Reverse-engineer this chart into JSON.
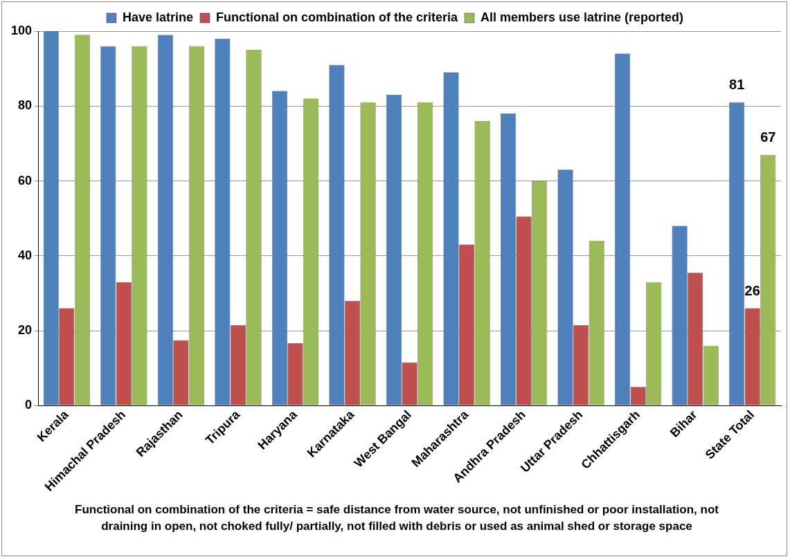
{
  "chart_data": {
    "type": "bar",
    "categories": [
      "Kerala",
      "Himachal Pradesh",
      "Rajasthan",
      "Tripura",
      "Haryana",
      "Karnataka",
      "West Bangal",
      "Maharashtra",
      "Andhra Pradesh",
      "Uttar Pradesh",
      "Chhattisgarh",
      "Bihar",
      "State Total"
    ],
    "series": [
      {
        "name": "Have latrine",
        "color": "#4f81bd",
        "values": [
          100,
          96,
          99,
          98,
          84,
          91,
          83,
          89,
          78,
          63,
          94,
          48,
          81
        ],
        "value_labels": [
          null,
          null,
          null,
          null,
          null,
          null,
          null,
          null,
          null,
          null,
          null,
          null,
          "81"
        ]
      },
      {
        "name": "Functional on combination of the criteria",
        "color": "#c0504d",
        "values": [
          26,
          33,
          17.5,
          21.5,
          16.7,
          28,
          11.5,
          43,
          50.5,
          21.5,
          5,
          35.5,
          26
        ],
        "value_labels": [
          null,
          null,
          null,
          null,
          null,
          null,
          null,
          null,
          null,
          null,
          null,
          null,
          "26"
        ]
      },
      {
        "name": "All members use latrine (reported)",
        "color": "#9bbb59",
        "values": [
          99,
          96,
          96,
          95,
          82,
          81,
          81,
          76,
          60,
          44,
          33,
          16,
          67
        ],
        "value_labels": [
          null,
          null,
          null,
          null,
          null,
          null,
          null,
          null,
          null,
          null,
          null,
          null,
          "67"
        ]
      }
    ],
    "ylim": [
      0,
      100
    ],
    "yticks": [
      0,
      20,
      40,
      60,
      80,
      100
    ],
    "grid": "y",
    "legend": "top",
    "annotations": [
      "Functional on combination of the criteria = safe distance from water source, not unfinished or poor installation, not draining in open, not choked fully/ partially, not filled with debris or used as animal shed or storage space"
    ]
  }
}
